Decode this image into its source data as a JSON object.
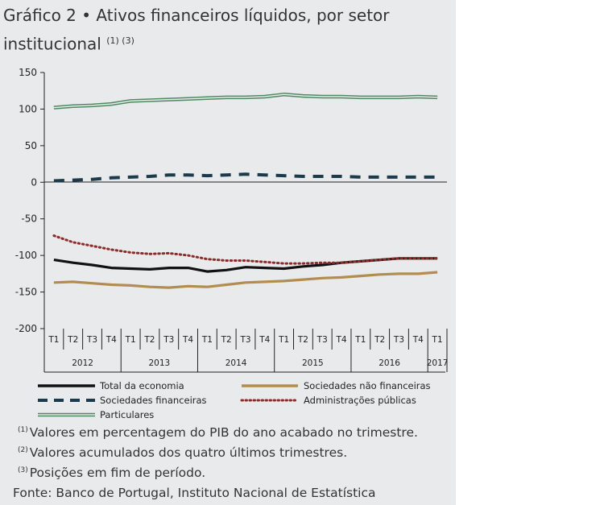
{
  "title": {
    "label": "Gráfico 2",
    "bullet": "•",
    "text": "Ativos financeiros líquidos, por setor institucional",
    "superscripts": "(1) (3)"
  },
  "chart_data": {
    "type": "line",
    "ylim": [
      -200,
      150
    ],
    "yticks": [
      "150",
      "100",
      "50",
      "0",
      "-50",
      "-100",
      "-150",
      "-200"
    ],
    "quarters": [
      "T1",
      "T2",
      "T3",
      "T4",
      "T1",
      "T2",
      "T3",
      "T4",
      "T1",
      "T2",
      "T3",
      "T4",
      "T1",
      "T2",
      "T3",
      "T4",
      "T1",
      "T2",
      "T3",
      "T4",
      "T1"
    ],
    "years": [
      "2012",
      "2013",
      "2014",
      "2015",
      "2016",
      "2017"
    ],
    "series": [
      {
        "name": "Total da economia",
        "color": "#111111",
        "style": "solid",
        "values": [
          -106,
          -110,
          -113,
          -117,
          -118,
          -119,
          -117,
          -117,
          -122,
          -120,
          -116,
          -117,
          -118,
          -115,
          -113,
          -110,
          -108,
          -106,
          -104,
          -104,
          -104
        ]
      },
      {
        "name": "Sociedades financeiras",
        "color": "#1b3a4b",
        "style": "dashed",
        "values": [
          2,
          3,
          4,
          6,
          7,
          8,
          10,
          10,
          9,
          10,
          11,
          10,
          9,
          8,
          8,
          8,
          7,
          7,
          7,
          7,
          7
        ]
      },
      {
        "name": "Particulares",
        "color": "#4f8a63",
        "style": "double",
        "values": [
          102,
          104,
          105,
          107,
          111,
          112,
          113,
          114,
          115,
          116,
          116,
          117,
          120,
          118,
          117,
          117,
          116,
          116,
          116,
          117,
          116
        ]
      },
      {
        "name": "Sociedades não financeiras",
        "color": "#b38d4f",
        "style": "solid",
        "values": [
          -137,
          -136,
          -138,
          -140,
          -141,
          -143,
          -144,
          -142,
          -143,
          -140,
          -137,
          -136,
          -135,
          -133,
          -131,
          -130,
          -128,
          -126,
          -125,
          -125,
          -123
        ]
      },
      {
        "name": "Administrações públicas",
        "color": "#8b2b2b",
        "style": "dotted",
        "values": [
          -73,
          -82,
          -87,
          -92,
          -96,
          -98,
          -97,
          -100,
          -105,
          -107,
          -107,
          -109,
          -111,
          -111,
          -110,
          -110,
          -108,
          -106,
          -104,
          -104,
          -104
        ]
      }
    ]
  },
  "legend": {
    "total": "Total da economia",
    "snf": "Sociedades não financeiras",
    "sf": "Sociedades financeiras",
    "ap": "Administrações públicas",
    "part": "Particulares"
  },
  "notes": {
    "n1_sup": "(1)",
    "n1": "Valores em percentagem do PIB do ano acabado no trimestre.",
    "n2_sup": "(2)",
    "n2": "Valores acumulados dos quatro últimos trimestres.",
    "n3_sup": "(3)",
    "n3": "Posições em fim de período."
  },
  "source": "Fonte: Banco de Portugal, Instituto Nacional de Estatística"
}
